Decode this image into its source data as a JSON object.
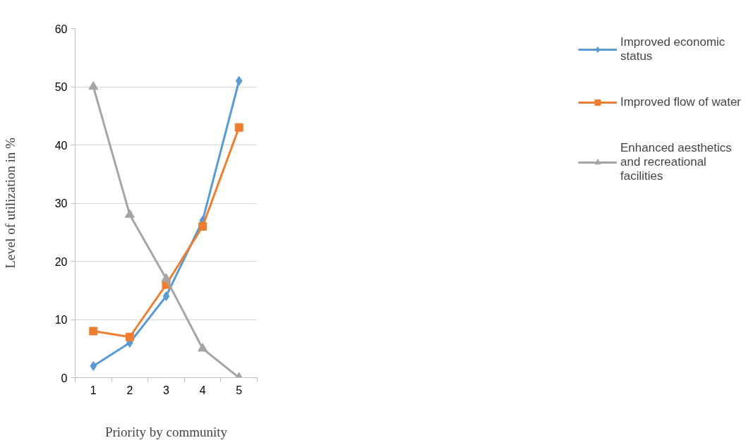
{
  "chart_data": {
    "type": "line",
    "xlabel": "Priority by community",
    "ylabel": "Level of utilization in %",
    "categories": [
      "1",
      "2",
      "3",
      "4",
      "5"
    ],
    "series": [
      {
        "name": "Improved economic status",
        "color": "#5b9bd5",
        "marker": "diamond",
        "values": [
          2,
          6,
          14,
          27,
          51
        ]
      },
      {
        "name": "Improved flow of water",
        "color": "#ed7d31",
        "marker": "square",
        "values": [
          8,
          7,
          16,
          26,
          43
        ]
      },
      {
        "name": "Enhanced aesthetics and recreational facilities",
        "color": "#a5a5a5",
        "marker": "triangle",
        "values": [
          50,
          28,
          17,
          5,
          0
        ]
      }
    ],
    "ylim": [
      0,
      60
    ],
    "yticks": [
      0,
      10,
      20,
      30,
      40,
      50,
      60
    ],
    "grid": "y",
    "legend": "right",
    "line_style": "solid"
  }
}
